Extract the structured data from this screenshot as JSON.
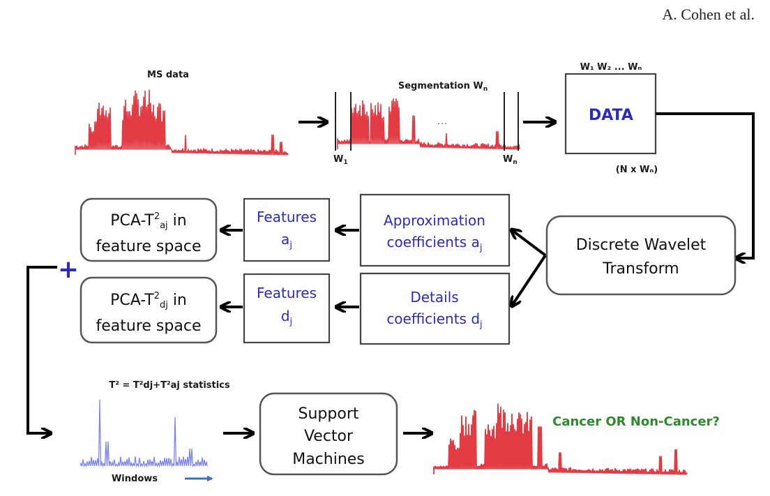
{
  "header": {
    "author": "A. Cohen et al."
  },
  "colors": {
    "spectrum_red": "#e23b44",
    "feature_blue": "#2b2bb3",
    "result_green": "#2f8a2f",
    "stat_blue": "#7c84e6"
  },
  "ms_data": {
    "title": "MS data"
  },
  "segmentation": {
    "title": "Segmentation W",
    "title_sub": "n",
    "w1": "W",
    "w1_sub": "1",
    "wn": "W",
    "wn_sub": "n",
    "dots": "..."
  },
  "data_box": {
    "header": "W₁ W₂ ... Wₙ",
    "label": "DATA",
    "dims": "(N x Wₙ)"
  },
  "dwt": {
    "line1": "Discrete Wavelet",
    "line2": "Transform"
  },
  "approx": {
    "line1": "Approximation",
    "line2": "coefficients a",
    "line2_sub": "j"
  },
  "details": {
    "line1": "Details",
    "line2": "coefficients d",
    "line2_sub": "j"
  },
  "features_a": {
    "line1": "Features",
    "line2": "a",
    "line2_sub": "j"
  },
  "features_d": {
    "line1": "Features",
    "line2": "d",
    "line2_sub": "j"
  },
  "pca_a": {
    "line1_pre": "PCA-T",
    "line1_sup": "2",
    "line1_sub": "aj",
    "line1_post": " in",
    "line2": "feature space"
  },
  "pca_d": {
    "line1_pre": "PCA-T",
    "line1_sup": "2",
    "line1_sub": "dj",
    "line1_post": " in",
    "line2": "feature space"
  },
  "plus": "+",
  "stats": {
    "title": "T² = T²dj+T²aj statistics",
    "windows": "Windows"
  },
  "svm": {
    "line1": "Support",
    "line2": "Vector",
    "line3": "Machines"
  },
  "result": {
    "label": "Cancer OR Non-Cancer?"
  }
}
